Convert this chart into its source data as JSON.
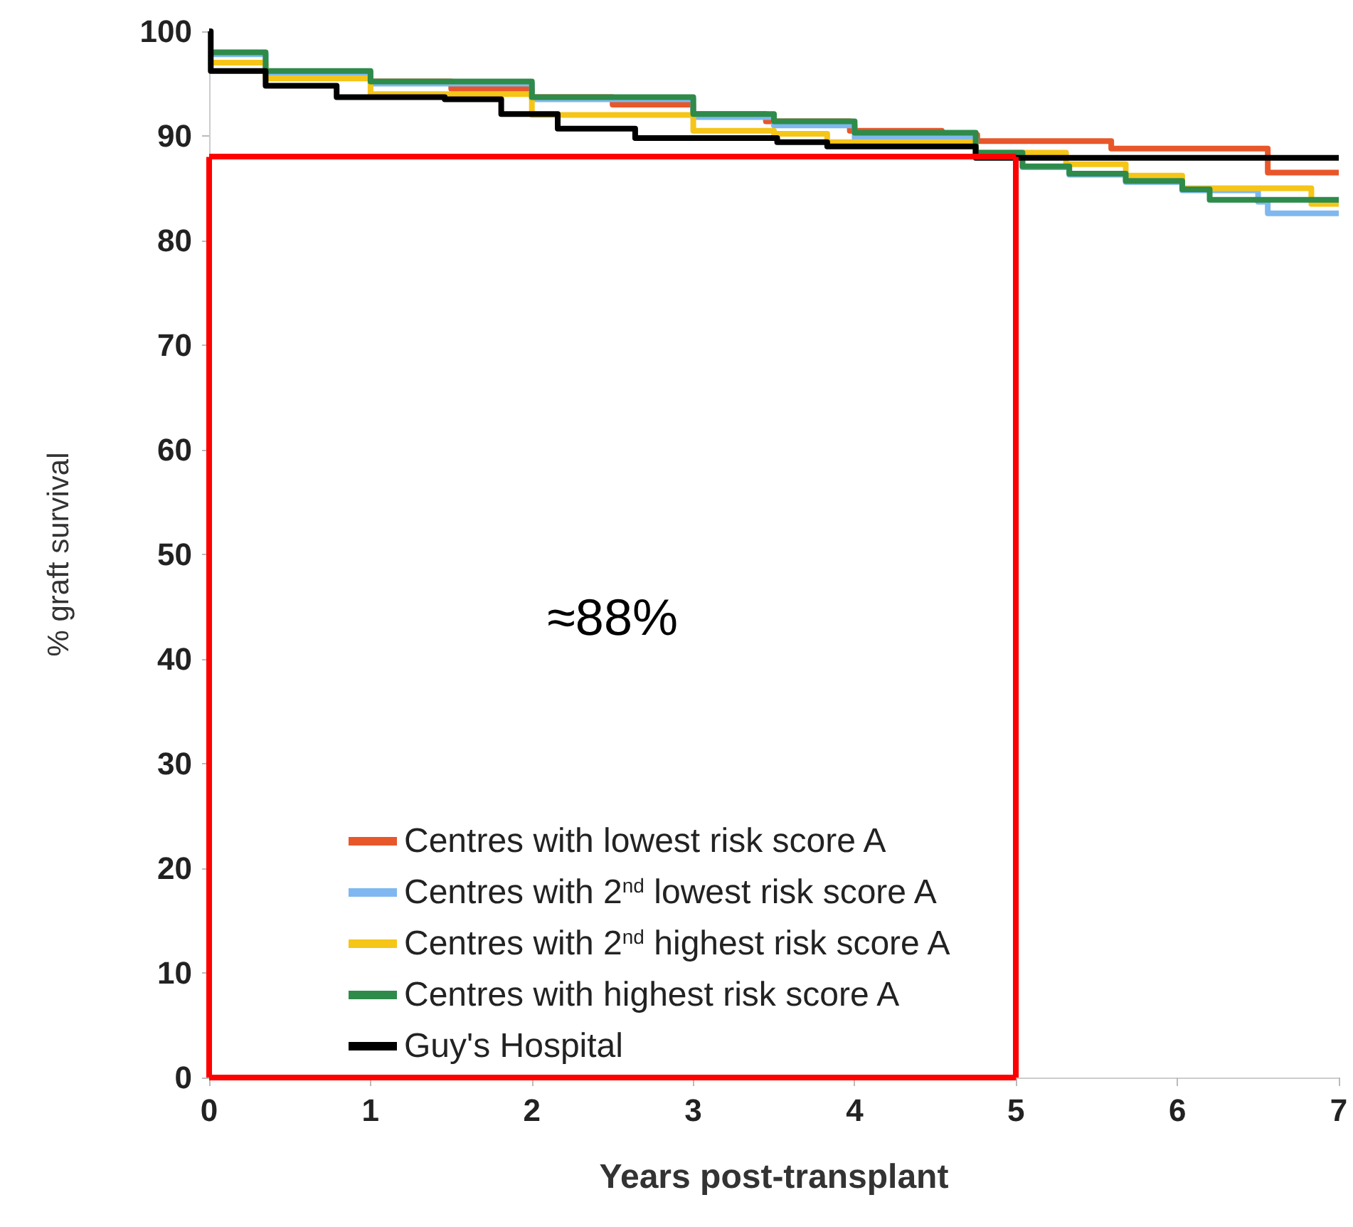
{
  "chart_data": {
    "type": "step",
    "xlabel": "Years post-transplant",
    "ylabel": "% graft survival",
    "xlim": [
      0,
      7
    ],
    "xticks": [
      0,
      1,
      2,
      3,
      4,
      5,
      6,
      7
    ],
    "ylim": [
      0,
      100
    ],
    "yticks": [
      0,
      10,
      20,
      30,
      40,
      50,
      60,
      70,
      80,
      90,
      100
    ],
    "grid": false,
    "legend": "bottom",
    "marker": "none",
    "line_style": "solid",
    "annotations": [
      "≈88%"
    ],
    "ref_lines": [
      {
        "axis": "x",
        "value": 5,
        "color": "#ff0000"
      },
      {
        "axis": "y",
        "value": 88,
        "color": "#ff0000"
      }
    ],
    "series": [
      {
        "name": "Centres with lowest risk score A",
        "color": "#e8572a",
        "x": [
          1,
          1.5,
          2,
          2.5,
          3,
          3.45,
          3.97,
          4.54,
          4.76,
          5.59,
          6.56,
          7
        ],
        "values": [
          95.2,
          94.5,
          93.7,
          93,
          92.1,
          91.4,
          90.5,
          90.1,
          89.5,
          88.8,
          86.5,
          86.5
        ]
      },
      {
        "name": "Centres with 2$^{nd}$ lowest risk score A",
        "color": "#7fb8f0",
        "x": [
          0,
          0.35,
          1,
          2,
          3,
          3.5,
          4,
          4.75,
          5.04,
          5.33,
          5.68,
          6.03,
          6.5,
          6.56,
          7
        ],
        "values": [
          97.8,
          96,
          95,
          93.5,
          91.8,
          91,
          89.8,
          88.2,
          87,
          86.3,
          85.6,
          84.8,
          83.7,
          82.6,
          82.6
        ]
      },
      {
        "name": "Centres with 2$^{nd}$ highest risk score A",
        "color": "#f5c518",
        "x": [
          0,
          0.35,
          1,
          2,
          3,
          3.5,
          3.83,
          4.75,
          5.31,
          5.68,
          6.03,
          6.83,
          7
        ],
        "values": [
          97,
          95.5,
          94,
          92,
          90.5,
          90.2,
          89.4,
          88.4,
          87.3,
          86.2,
          85,
          83.5,
          83.5
        ]
      },
      {
        "name": "Centres with highest risk score A",
        "color": "#2e8b4a",
        "x": [
          0,
          0.35,
          1,
          2,
          3,
          3.5,
          4,
          4.75,
          5.04,
          5.33,
          5.68,
          6.03,
          6.2,
          7
        ],
        "values": [
          98,
          96.2,
          95.2,
          93.7,
          92.1,
          91.4,
          90.3,
          88.4,
          87.1,
          86.4,
          85.7,
          84.9,
          83.9,
          83.9
        ]
      },
      {
        "name": "Guy's Hospital",
        "color": "#000000",
        "x": [
          0,
          0.01,
          0.35,
          0.79,
          1.46,
          1.81,
          2.16,
          2.64,
          3.52,
          3.83,
          4.75,
          7
        ],
        "values": [
          100,
          96.2,
          94.8,
          93.7,
          93.5,
          92.1,
          90.7,
          89.8,
          89.4,
          89,
          87.9,
          87.9
        ]
      }
    ]
  }
}
